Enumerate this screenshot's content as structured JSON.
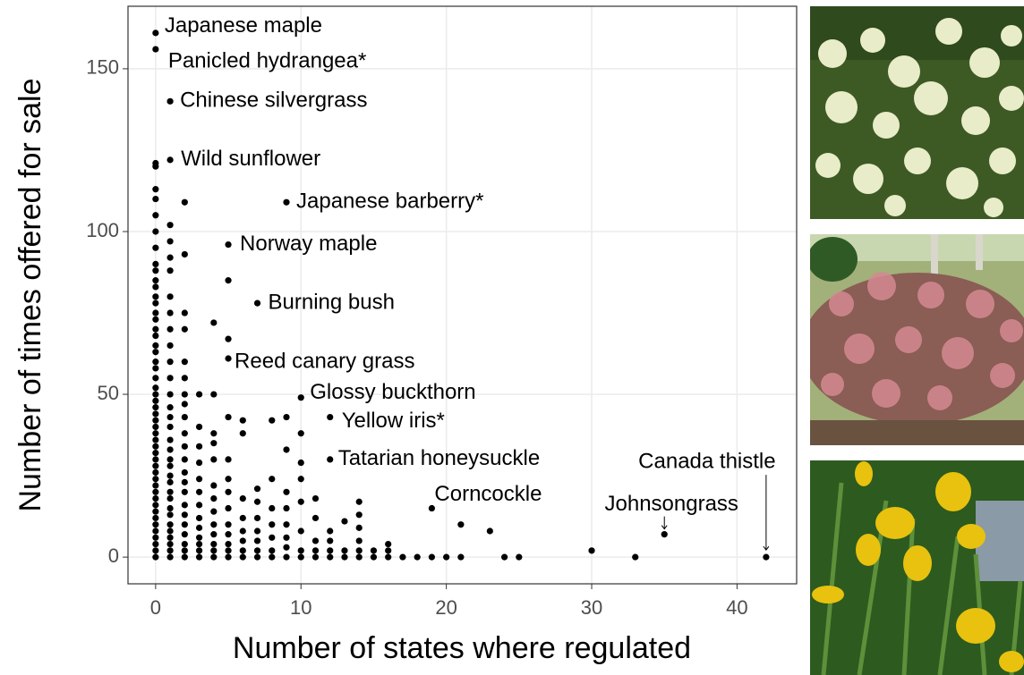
{
  "chart_data": {
    "type": "scatter",
    "xlabel": "Number of states where regulated",
    "ylabel": "Number of times offered for sale",
    "xlim": [
      -1.9,
      44.1
    ],
    "ylim": [
      -8.2,
      169.2
    ],
    "xticks": [
      0,
      10,
      20,
      30,
      40
    ],
    "yticks": [
      0,
      50,
      100,
      150
    ],
    "grid": true,
    "color": "#000000",
    "series": [
      {
        "x": [
          0,
          0,
          1,
          1,
          9,
          5,
          7,
          5,
          10,
          12,
          12,
          19,
          35,
          42
        ],
        "values": [
          161,
          156,
          140,
          122,
          109,
          96,
          78,
          61,
          49,
          43,
          30,
          15,
          7,
          0
        ],
        "labels": [
          "Japanese maple",
          "Panicled hydrangea*",
          "Chinese silvergrass",
          "Wild sunflower",
          "Japanese barberry*",
          "Norway maple",
          "Burning bush",
          "Reed canary grass",
          "Glossy buckthorn",
          "Yellow iris*",
          "Tatarian honeysuckle",
          "Corncockle",
          "Johnsongrass",
          "Canada thistle"
        ]
      },
      {
        "x": [
          0,
          0,
          0,
          0,
          0,
          0,
          0,
          0,
          0,
          0,
          0,
          0,
          0,
          0,
          0,
          0,
          0,
          0,
          0,
          0,
          0,
          0,
          0,
          0,
          0,
          0,
          0,
          0,
          0,
          0,
          0,
          0,
          0,
          0,
          0,
          0,
          0,
          0,
          0,
          0,
          0,
          0,
          0,
          0,
          0,
          0,
          0,
          0,
          0,
          1,
          1,
          1,
          1,
          1,
          1,
          1,
          1,
          1,
          1,
          1,
          1,
          1,
          1,
          1,
          1,
          1,
          1,
          1,
          1,
          1,
          1,
          1,
          1,
          1,
          1,
          1,
          1,
          1,
          1,
          2,
          2,
          2,
          2,
          2,
          2,
          2,
          2,
          2,
          2,
          2,
          2,
          2,
          2,
          2,
          2,
          2,
          2,
          2,
          2,
          2,
          2,
          3,
          3,
          3,
          3,
          3,
          3,
          3,
          3,
          3,
          3,
          3,
          3,
          3,
          4,
          4,
          4,
          4,
          4,
          4,
          4,
          4,
          4,
          4,
          4,
          4,
          4,
          5,
          5,
          5,
          5,
          5,
          5,
          5,
          5,
          5,
          5,
          5,
          5,
          6,
          6,
          6,
          6,
          6,
          6,
          6,
          6,
          7,
          7,
          7,
          7,
          7,
          7,
          7,
          8,
          8,
          8,
          8,
          8,
          8,
          8,
          9,
          9,
          9,
          9,
          9,
          9,
          9,
          9,
          10,
          10,
          10,
          10,
          10,
          10,
          10,
          11,
          11,
          11,
          11,
          11,
          12,
          12,
          12,
          12,
          13,
          13,
          13,
          14,
          14,
          14,
          14,
          14,
          14,
          15,
          15,
          16,
          16,
          16,
          17,
          18,
          19,
          20,
          21,
          21,
          23,
          24,
          25,
          30,
          33
        ],
        "values": [
          0,
          2,
          4,
          6,
          8,
          10,
          12,
          14,
          16,
          18,
          20,
          22,
          24,
          26,
          28,
          30,
          32,
          34,
          36,
          38,
          40,
          42,
          44,
          46,
          48,
          50,
          52,
          55,
          58,
          60,
          63,
          65,
          68,
          70,
          73,
          75,
          78,
          80,
          83,
          85,
          88,
          90,
          95,
          100,
          105,
          110,
          113,
          120,
          121,
          0,
          2,
          4,
          6,
          8,
          10,
          13,
          15,
          18,
          20,
          23,
          25,
          28,
          30,
          33,
          36,
          40,
          43,
          46,
          50,
          55,
          60,
          65,
          70,
          75,
          80,
          88,
          92,
          97,
          102,
          0,
          2,
          4,
          7,
          10,
          13,
          16,
          20,
          23,
          26,
          30,
          34,
          38,
          43,
          47,
          50,
          55,
          60,
          70,
          75,
          93,
          109,
          0,
          2,
          4,
          6,
          9,
          12,
          16,
          20,
          24,
          29,
          34,
          40,
          50,
          0,
          2,
          4,
          7,
          10,
          14,
          18,
          22,
          30,
          35,
          38,
          50,
          72,
          0,
          2,
          4,
          7,
          10,
          15,
          20,
          24,
          30,
          43,
          67,
          85,
          0,
          2,
          5,
          8,
          12,
          18,
          38,
          42,
          0,
          2,
          5,
          8,
          12,
          17,
          21,
          0,
          2,
          6,
          10,
          15,
          24,
          42,
          0,
          3,
          6,
          10,
          15,
          20,
          33,
          43,
          0,
          2,
          8,
          17,
          24,
          29,
          38,
          0,
          2,
          5,
          12,
          18,
          0,
          2,
          5,
          8,
          0,
          2,
          11,
          0,
          2,
          5,
          9,
          13,
          17,
          0,
          2,
          0,
          2,
          4,
          0,
          0,
          0,
          0,
          0,
          10,
          8,
          0,
          0,
          2,
          0
        ]
      }
    ]
  }
}
